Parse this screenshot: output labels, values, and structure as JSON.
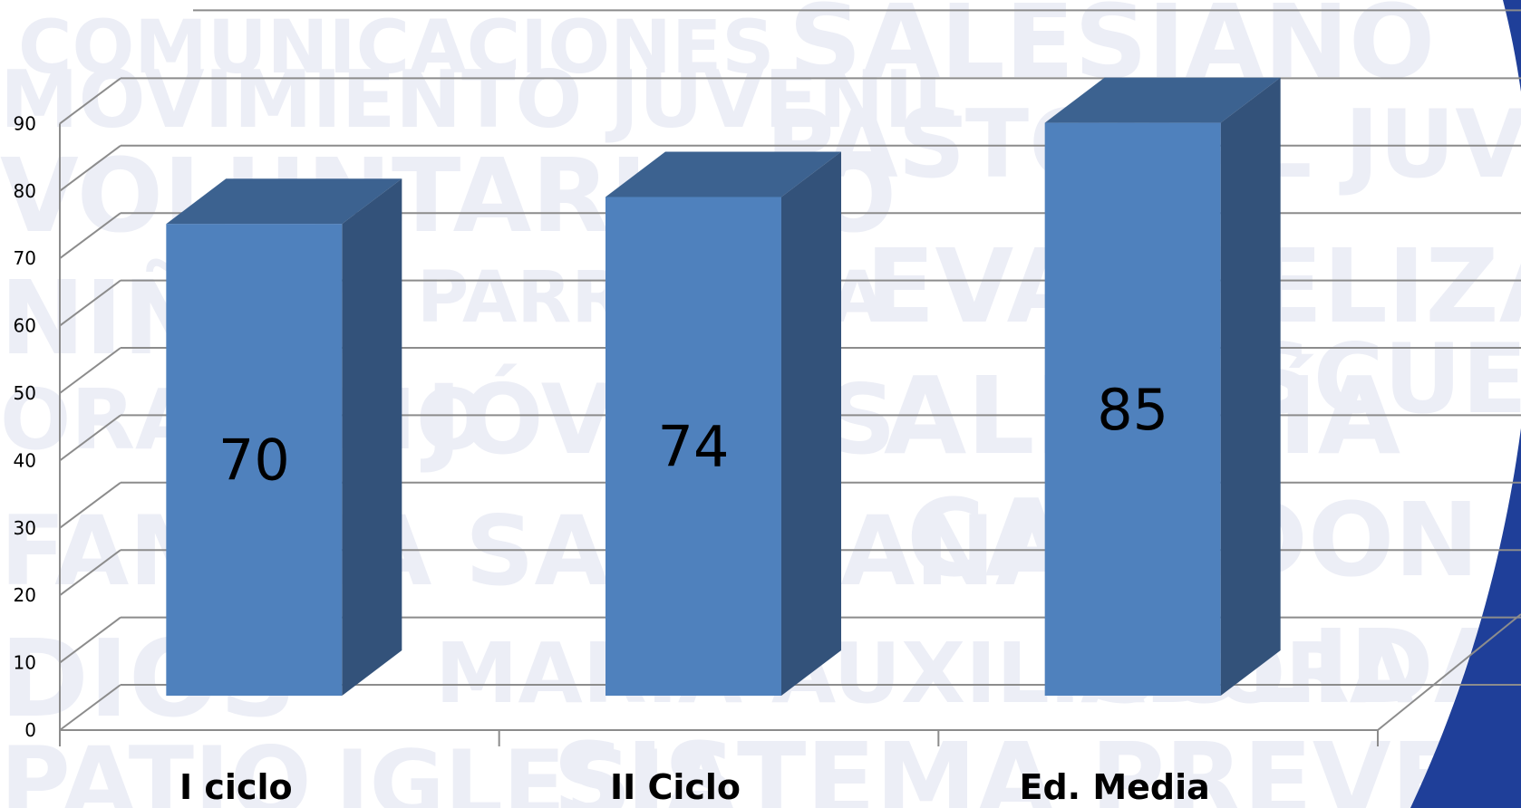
{
  "background_words": [
    "COMUNICACIONES",
    "SALESIANO",
    "MOVIMIENTO JUVENIL",
    "PASTORAL JUVENIL",
    "VOLUNTARIADO",
    "NIÑOS",
    "PARROQUIA",
    "EVANGELIZACIÓN",
    "ORATORIO",
    "JÓVENES",
    "ALEGRÍA",
    "ESCUELA",
    "FAMILIA SALESIANA",
    "CASA",
    "DON",
    "DIOS",
    "MARÍA AUXILIADORA",
    "SOLIDARIDAD",
    "PATIO",
    "IGLESIA",
    "SISTEMA PREVENTIVO"
  ],
  "colors": {
    "bar_front": "#4f81bd",
    "bar_top": "#3c6290",
    "bar_side": "#33527a",
    "grid": "#8c8c8c",
    "watermark": "#eceef6",
    "corner_accent": "#1f3f99"
  },
  "chart_data": {
    "type": "bar",
    "style": "3d-column",
    "categories": [
      "I ciclo",
      "II Ciclo",
      "Ed. Media"
    ],
    "values": [
      70,
      74,
      85
    ],
    "data_labels": [
      "70",
      "74",
      "85"
    ],
    "y_ticks": [
      "0",
      "10",
      "20",
      "30",
      "40",
      "50",
      "60",
      "70",
      "80",
      "90"
    ],
    "ylim": [
      0,
      90
    ],
    "grid": true,
    "legend": "none",
    "title": "",
    "xlabel": "",
    "ylabel": ""
  }
}
